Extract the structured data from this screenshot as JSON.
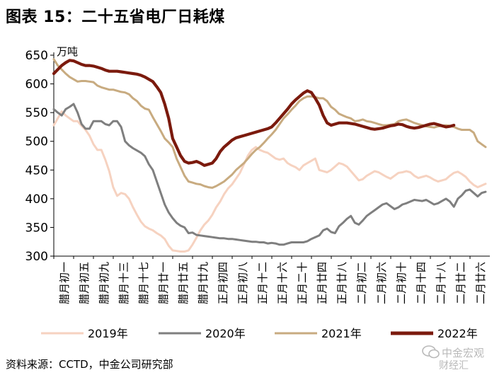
{
  "figure": {
    "title": "图表 15：二十五省电厂日耗煤",
    "source": "资料来源：CCTD，中金公司研究部",
    "watermark_top": "中金宏观",
    "watermark_bottom": "财经汇"
  },
  "chart_data": {
    "type": "line",
    "unit_label": "万吨",
    "ylim": [
      300,
      650
    ],
    "yticks": [
      300,
      350,
      400,
      450,
      500,
      550,
      600,
      650
    ],
    "xlabels": [
      "腊月初一",
      "腊月初五",
      "腊月初九",
      "腊月十三",
      "腊月十七",
      "腊月廿一",
      "腊月廿五",
      "腊月廿九",
      "正月初四",
      "正月初八",
      "正月十二",
      "正月十六",
      "正月二十",
      "正月廿四",
      "正月廿八",
      "二月初二",
      "二月初六",
      "二月初十",
      "二月十四",
      "二月十八",
      "二月廿二",
      "二月廿六"
    ],
    "legend_position": "bottom",
    "grid": false,
    "series": [
      {
        "name": "2019年",
        "color": "#f6d2c0",
        "values": [
          528,
          540,
          552,
          545,
          540,
          535,
          535,
          527,
          520,
          510,
          495,
          485,
          485,
          468,
          448,
          420,
          405,
          410,
          408,
          400,
          385,
          372,
          360,
          352,
          348,
          345,
          340,
          336,
          330,
          318,
          310,
          309,
          308,
          308,
          310,
          320,
          332,
          345,
          355,
          362,
          372,
          385,
          395,
          408,
          418,
          425,
          435,
          445,
          460,
          475,
          485,
          490,
          485,
          482,
          480,
          475,
          470,
          468,
          470,
          462,
          458,
          455,
          450,
          458,
          462,
          466,
          470,
          450,
          448,
          446,
          450,
          456,
          462,
          460,
          456,
          448,
          440,
          432,
          434,
          440,
          444,
          448,
          446,
          442,
          438,
          435,
          440,
          445,
          446,
          448,
          446,
          440,
          436,
          438,
          440,
          437,
          433,
          430,
          432,
          434,
          440,
          445,
          447,
          443,
          438,
          430,
          424,
          420,
          423,
          426
        ]
      },
      {
        "name": "2020年",
        "color": "#7f7f7f",
        "values": [
          556,
          550,
          545,
          556,
          560,
          565,
          550,
          530,
          522,
          522,
          535,
          535,
          535,
          530,
          528,
          535,
          535,
          525,
          500,
          493,
          488,
          484,
          480,
          474,
          460,
          450,
          430,
          410,
          390,
          376,
          366,
          358,
          353,
          350,
          340,
          341,
          337,
          336,
          335,
          334,
          333,
          332,
          331,
          331,
          330,
          330,
          329,
          328,
          327,
          326,
          325,
          325,
          324,
          324,
          322,
          323,
          322,
          320,
          320,
          322,
          324,
          324,
          324,
          324,
          326,
          330,
          333,
          336,
          345,
          348,
          342,
          340,
          352,
          358,
          365,
          370,
          358,
          355,
          362,
          370,
          375,
          380,
          385,
          390,
          392,
          387,
          382,
          385,
          390,
          392,
          395,
          398,
          397,
          396,
          398,
          394,
          390,
          392,
          396,
          400,
          395,
          386,
          400,
          406,
          414,
          416,
          410,
          404,
          410,
          412
        ]
      },
      {
        "name": "2021年",
        "color": "#c8ab80",
        "values": [
          643,
          632,
          625,
          618,
          612,
          608,
          604,
          605,
          605,
          604,
          603,
          597,
          594,
          592,
          590,
          590,
          588,
          586,
          585,
          582,
          575,
          570,
          562,
          557,
          555,
          542,
          530,
          518,
          505,
          498,
          490,
          470,
          455,
          440,
          430,
          428,
          426,
          425,
          422,
          420,
          419,
          422,
          426,
          430,
          436,
          442,
          450,
          456,
          462,
          470,
          478,
          485,
          490,
          497,
          505,
          512,
          520,
          530,
          540,
          547,
          555,
          562,
          570,
          575,
          578,
          578,
          577,
          575,
          575,
          570,
          560,
          555,
          548,
          545,
          542,
          540,
          535,
          536,
          538,
          535,
          534,
          532,
          530,
          528,
          528,
          529,
          530,
          535,
          537,
          538,
          535,
          532,
          530,
          528,
          526,
          525,
          524,
          526,
          527,
          528,
          527,
          525,
          522,
          520,
          520,
          520,
          515,
          500,
          495,
          490
        ]
      },
      {
        "name": "2022年",
        "color": "#7b1a0d",
        "values": [
          618,
          625,
          632,
          637,
          641,
          640,
          637,
          634,
          632,
          632,
          631,
          629,
          627,
          624,
          622,
          622,
          622,
          621,
          620,
          619,
          618,
          617,
          615,
          612,
          608,
          604,
          595,
          585,
          565,
          540,
          505,
          490,
          475,
          465,
          462,
          463,
          465,
          462,
          458,
          460,
          462,
          470,
          482,
          490,
          496,
          502,
          506,
          508,
          510,
          512,
          514,
          516,
          518,
          520,
          522,
          525,
          532,
          540,
          548,
          556,
          565,
          572,
          578,
          584,
          588,
          585,
          575,
          563,
          545,
          532,
          528,
          530,
          532,
          532,
          532,
          531,
          530,
          528,
          526,
          524,
          522,
          521,
          522,
          523,
          525,
          527,
          528,
          530,
          529,
          526,
          524,
          523,
          524,
          526,
          528,
          530,
          531,
          529,
          527,
          525,
          526,
          528
        ]
      }
    ]
  }
}
